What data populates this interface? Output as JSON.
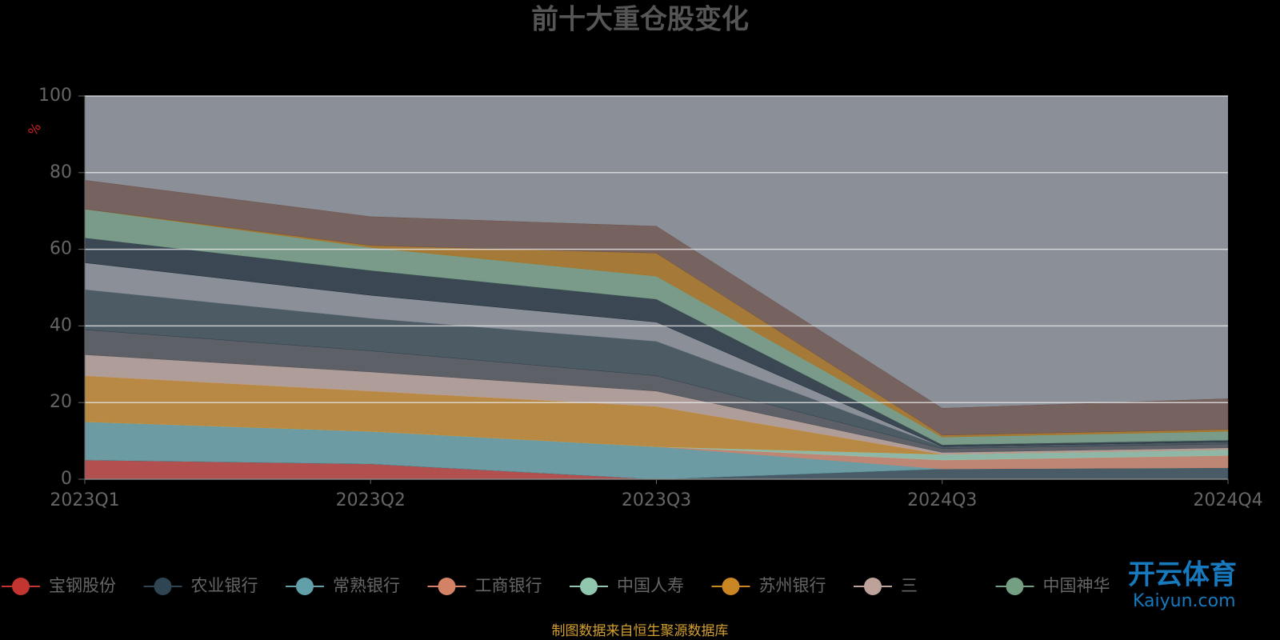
{
  "chart_data": {
    "type": "stacked-area",
    "title": "前十大重仓股变化",
    "y_label": "%",
    "categories": [
      "2023Q1",
      "2023Q2",
      "2023Q3",
      "2024Q3",
      "2024Q4"
    ],
    "ylim": [
      0,
      100
    ],
    "yticks": [
      0,
      20,
      40,
      60,
      80,
      100
    ],
    "grid": true,
    "series": [
      {
        "name": "宝钢股份",
        "color": "#c23531",
        "values": [
          5,
          4,
          0,
          0,
          0
        ]
      },
      {
        "name": "农业银行",
        "color": "#2f4554",
        "values": [
          0,
          0,
          0,
          2.7,
          3
        ]
      },
      {
        "name": "常熟银行",
        "color": "#61a0a8",
        "values": [
          10,
          8.5,
          8.5,
          0,
          0
        ]
      },
      {
        "name": "工商银行",
        "color": "#d48265",
        "values": [
          0,
          0,
          0,
          2.3,
          3.2
        ]
      },
      {
        "name": "中国人寿",
        "color": "#91c7ae",
        "values": [
          0,
          0,
          0,
          1.5,
          1.5
        ]
      },
      {
        "name": "苏州银行",
        "color": "#ca8622",
        "values": [
          12,
          10.5,
          10.5,
          0,
          0
        ]
      },
      {
        "name": "三",
        "color": "#bda29a",
        "values": [
          5.5,
          5,
          4,
          0.5,
          0.5
        ]
      },
      {
        "color": "#4a4c52",
        "values": [
          6.5,
          5.5,
          4,
          1,
          1
        ]
      },
      {
        "color": "#334550",
        "values": [
          10.5,
          8.5,
          9,
          0.5,
          0.5
        ]
      },
      {
        "color": "#8a8f98",
        "values": [
          7,
          6,
          5,
          0,
          0
        ]
      },
      {
        "color": "#1a2a36",
        "values": [
          6.5,
          6.5,
          6,
          0.5,
          0.5
        ]
      },
      {
        "name": "中国神华",
        "color": "#749f83",
        "values": [
          7.5,
          6,
          6,
          2,
          2.3
        ]
      },
      {
        "color": "#b07010",
        "values": [
          0,
          0.5,
          6,
          0.5,
          0.5
        ]
      },
      {
        "color": "#6e5048",
        "values": [
          7.5,
          7.5,
          7,
          7,
          8
        ]
      }
    ],
    "source": "制图数据来自恒生聚源数据库",
    "watermark": [
      "开云体育",
      "Kaiyun.com"
    ]
  }
}
